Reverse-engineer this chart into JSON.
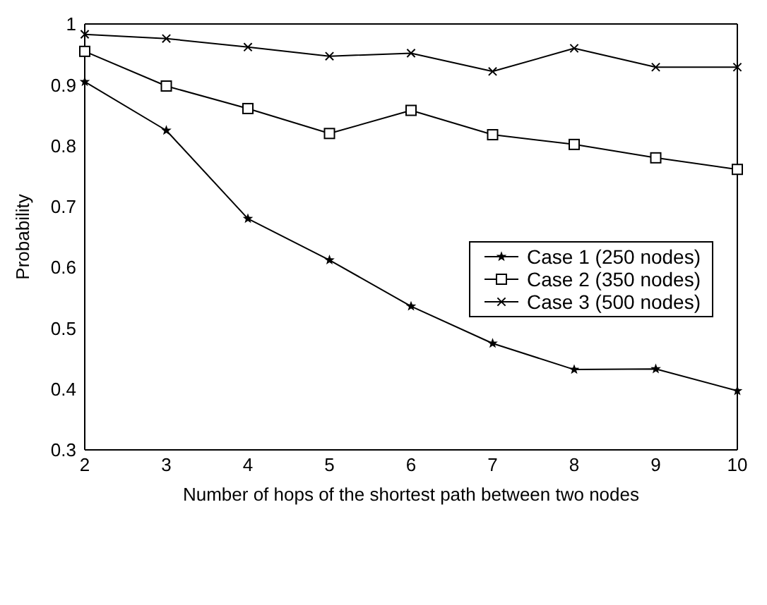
{
  "chart_data": {
    "type": "line",
    "xlabel": "Number of hops of the shortest path between two nodes",
    "ylabel": "Probability",
    "x": [
      2,
      3,
      4,
      5,
      6,
      7,
      8,
      9,
      10
    ],
    "series": [
      {
        "name": "Case 1 (250 nodes)",
        "color": "#000000",
        "marker": "star",
        "values": [
          0.905,
          0.825,
          0.68,
          0.612,
          0.536,
          0.475,
          0.432,
          0.433,
          0.397
        ]
      },
      {
        "name": "Case 2 (350 nodes)",
        "color": "#000000",
        "marker": "square",
        "values": [
          0.955,
          0.898,
          0.861,
          0.82,
          0.858,
          0.818,
          0.802,
          0.78,
          0.761
        ]
      },
      {
        "name": "Case 3 (500 nodes)",
        "color": "#000000",
        "marker": "cross",
        "values": [
          0.983,
          0.976,
          0.962,
          0.947,
          0.952,
          0.922,
          0.96,
          0.929,
          0.929
        ]
      }
    ],
    "xlim": [
      2,
      10
    ],
    "xticks": [
      2,
      3,
      4,
      5,
      6,
      7,
      8,
      9,
      10
    ],
    "ylim": [
      0.3,
      1
    ],
    "yticks": [
      0.3,
      0.4,
      0.5,
      0.6,
      0.7,
      0.8,
      0.9,
      1
    ],
    "grid": false,
    "legend": "right",
    "line_style": "solid"
  }
}
